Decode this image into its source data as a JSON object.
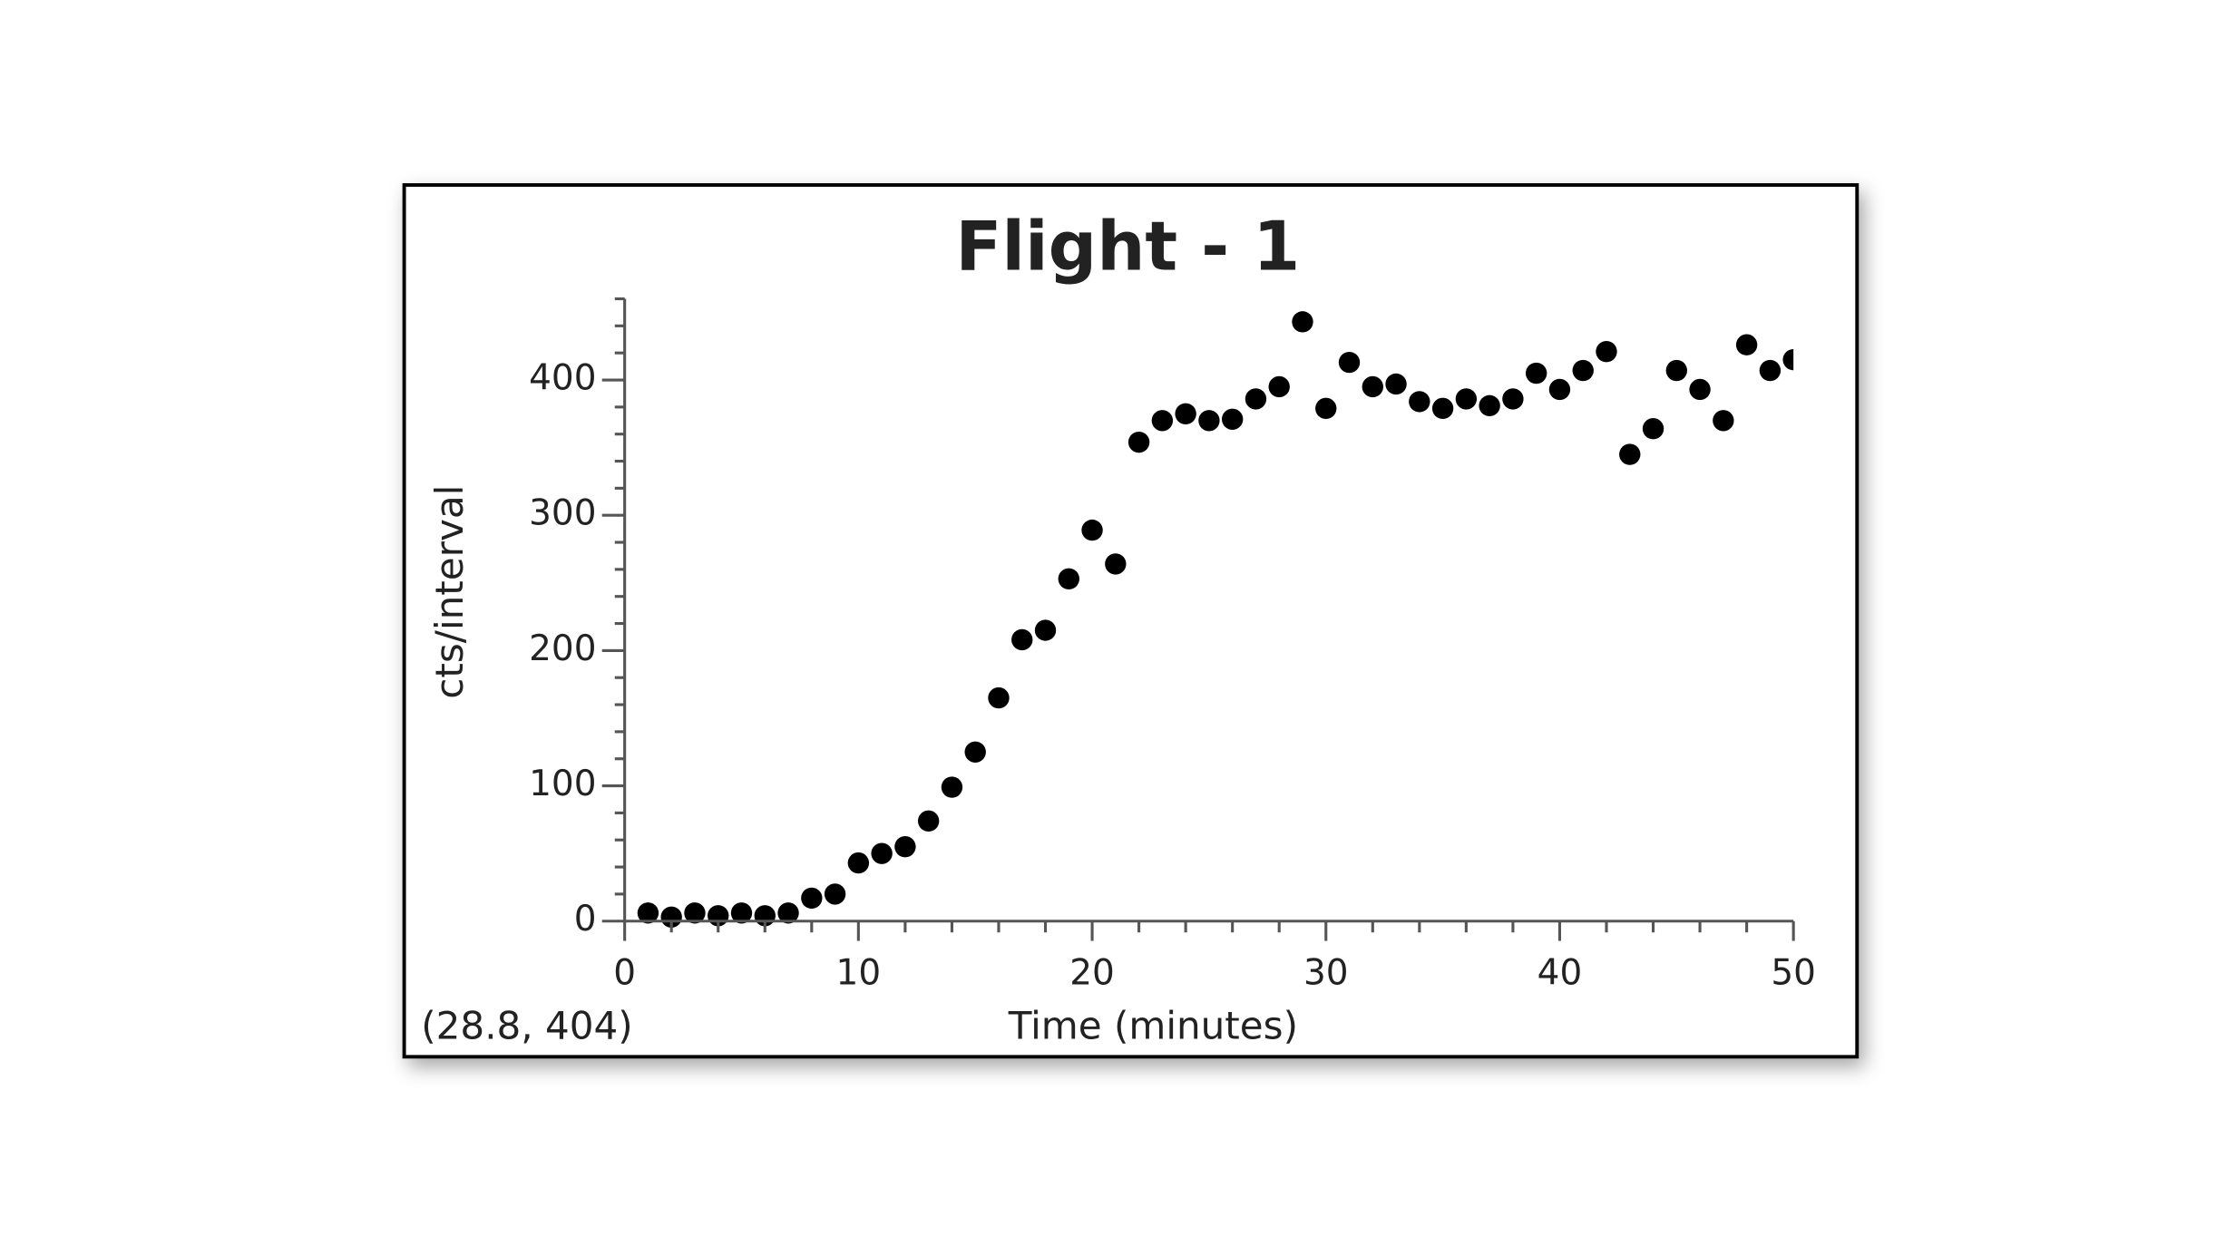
{
  "chart_data": {
    "type": "scatter",
    "title": "Flight - 1",
    "xlabel": "Time (minutes)",
    "ylabel": "cts/interval",
    "annotation": "(28.8, 404)",
    "color": "#000000",
    "x": [
      1,
      2,
      3,
      4,
      5,
      6,
      7,
      8,
      9,
      10,
      11,
      12,
      13,
      14,
      15,
      16,
      17,
      18,
      19,
      20,
      21,
      22,
      23,
      24,
      25,
      26,
      27,
      28,
      29,
      30,
      31,
      32,
      33,
      34,
      35,
      36,
      37,
      38,
      39,
      40,
      41,
      42,
      43,
      44,
      45,
      46,
      47,
      48,
      49,
      50
    ],
    "values": [
      6,
      3,
      6,
      4,
      6,
      4,
      6,
      17,
      20,
      43,
      50,
      55,
      74,
      99,
      125,
      165,
      208,
      215,
      253,
      289,
      264,
      354,
      370,
      375,
      370,
      371,
      386,
      395,
      443,
      379,
      413,
      395,
      397,
      384,
      379,
      386,
      381,
      386,
      405,
      393,
      407,
      421,
      345,
      364,
      407,
      393,
      370,
      426,
      407,
      415
    ],
    "xlim": [
      0,
      50
    ],
    "ylim": [
      0,
      460
    ],
    "xticks": [
      0,
      10,
      20,
      30,
      40,
      50
    ],
    "yticks": [
      0,
      100,
      200,
      300,
      400
    ],
    "xticks_minor": [
      2,
      4,
      6,
      8,
      12,
      14,
      16,
      18,
      22,
      24,
      26,
      28,
      32,
      34,
      36,
      38,
      42,
      44,
      46,
      48
    ],
    "yticks_minor": [
      20,
      40,
      60,
      80,
      120,
      140,
      160,
      180,
      220,
      240,
      260,
      280,
      320,
      340,
      360,
      380,
      420,
      440,
      460
    ]
  }
}
